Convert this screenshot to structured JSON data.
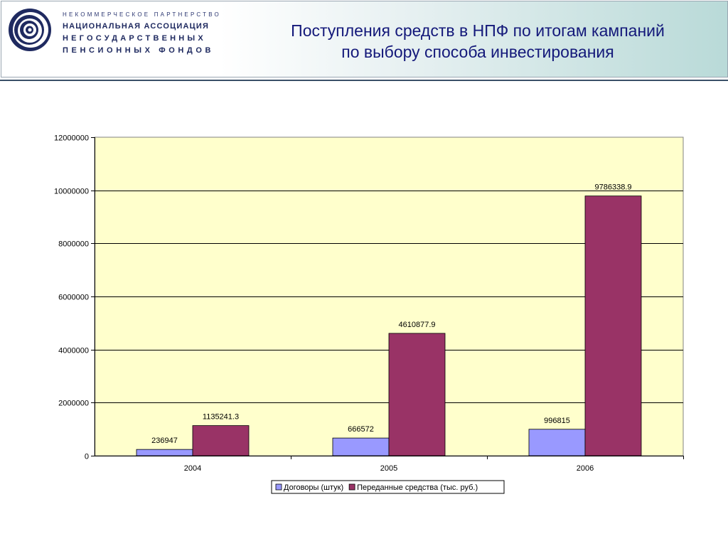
{
  "header": {
    "org_line1": "НЕКОММЕРЧЕСКОЕ ПАРТНЕРСТВО",
    "org_line2": "НАЦИОНАЛЬНАЯ АССОЦИАЦИЯ",
    "org_line3": "НЕГОСУДАРСТВЕННЫХ",
    "org_line4": "ПЕНСИОННЫХ ФОНДОВ",
    "title_line1": "Поступления средств в НПФ по итогам кампаний",
    "title_line2": "по выбору способа инвестирования"
  },
  "colors": {
    "plot_bg": "#ffffcc",
    "series1": "#9999ff",
    "series2": "#993366",
    "title": "#14197a",
    "org": "#1f2a60"
  },
  "chart_data": {
    "type": "bar",
    "categories": [
      "2004",
      "2005",
      "2006"
    ],
    "series": [
      {
        "name": "Договоры (штук)",
        "values": [
          236947,
          666572,
          996815
        ],
        "labels": [
          "236947",
          "666572",
          "996815"
        ]
      },
      {
        "name": "Переданные средства (тыс. руб.)",
        "values": [
          1135241.3,
          4610877.9,
          9786338.9
        ],
        "labels": [
          "1135241.3",
          "4610877.9",
          "9786338.9"
        ]
      }
    ],
    "ylim": [
      0,
      12000000
    ],
    "yticks": [
      "0",
      "2000000",
      "4000000",
      "6000000",
      "8000000",
      "10000000",
      "12000000"
    ],
    "grid": true,
    "legend": "bottom"
  }
}
